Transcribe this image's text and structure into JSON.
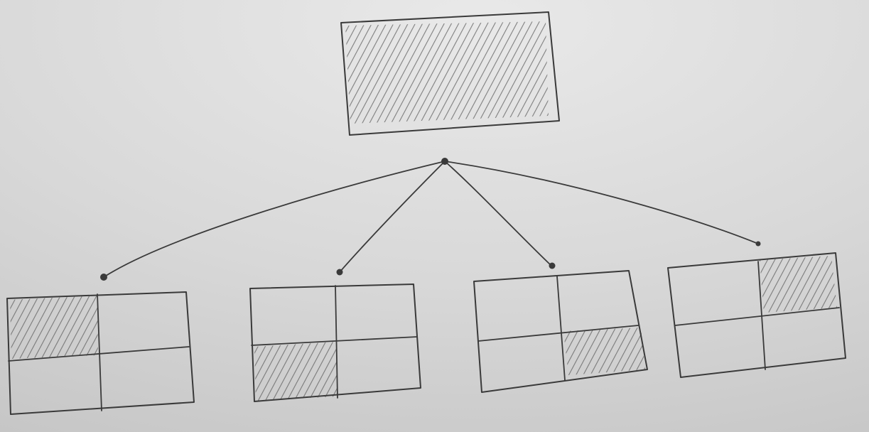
{
  "diagram": {
    "colors": {
      "paper_light": "#e9e9e9",
      "paper_mid": "#d8d8d8",
      "paper_dark": "#c6c6c6",
      "pencil": "#3a3a3a",
      "hatch": "#5c5c5c"
    },
    "root": {
      "shaded": true
    },
    "children": [
      {
        "shaded_quadrant": "top-left"
      },
      {
        "shaded_quadrant": "bottom-left"
      },
      {
        "shaded_quadrant": "bottom-right"
      },
      {
        "shaded_quadrant": "top-right"
      }
    ]
  }
}
